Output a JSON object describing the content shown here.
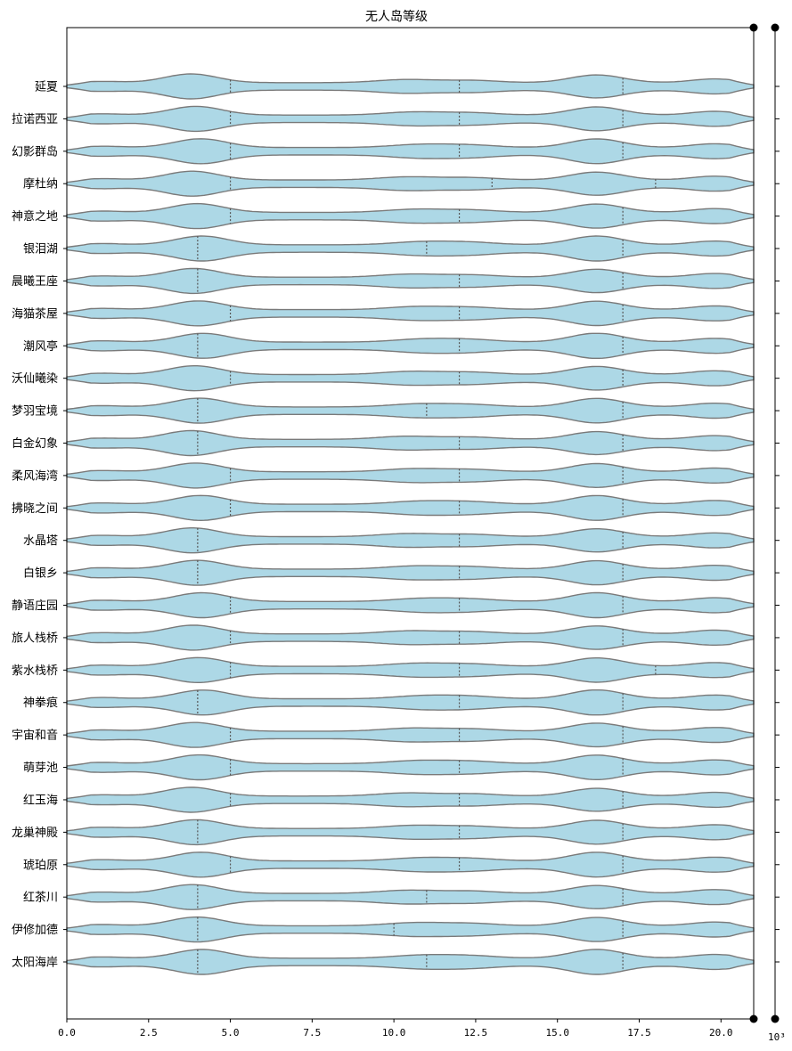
{
  "chart_data": {
    "type": "violin",
    "title": "无人岛等级",
    "xlabel": "",
    "ylabel": "",
    "xlim": [
      0,
      21
    ],
    "x_ticks": [
      0,
      2.5,
      5,
      7.5,
      10,
      12.5,
      15,
      17.5,
      20
    ],
    "x_tick_labels": [
      "0.0",
      "2.5",
      "5.0",
      "7.5",
      "10.0",
      "12.5",
      "15.0",
      "17.5",
      "20.0"
    ],
    "secondary_axis_label": "10³",
    "categories": [
      "延夏",
      "拉诺西亚",
      "幻影群岛",
      "摩杜纳",
      "神意之地",
      "银泪湖",
      "晨曦王座",
      "海猫茶屋",
      "潮风亭",
      "沃仙曦染",
      "梦羽宝境",
      "白金幻象",
      "柔风海湾",
      "拂晓之间",
      "水晶塔",
      "白银乡",
      "静语庄园",
      "旅人栈桥",
      "紫水栈桥",
      "神拳痕",
      "宇宙和音",
      "萌芽池",
      "红玉海",
      "龙巢神殿",
      "琥珀原",
      "红茶川",
      "伊修加德",
      "太阳海岸"
    ],
    "quartiles": [
      [
        5,
        12,
        17
      ],
      [
        5,
        12,
        17
      ],
      [
        5,
        12,
        17
      ],
      [
        5,
        13,
        18
      ],
      [
        5,
        12,
        17
      ],
      [
        4,
        11,
        17
      ],
      [
        4,
        12,
        17
      ],
      [
        5,
        12,
        17
      ],
      [
        4,
        12,
        17
      ],
      [
        5,
        12,
        17
      ],
      [
        4,
        11,
        17
      ],
      [
        4,
        12,
        17
      ],
      [
        5,
        12,
        17
      ],
      [
        5,
        12,
        17
      ],
      [
        4,
        12,
        17
      ],
      [
        4,
        12,
        17
      ],
      [
        5,
        12,
        17
      ],
      [
        5,
        12,
        17
      ],
      [
        5,
        12,
        18
      ],
      [
        4,
        12,
        17
      ],
      [
        5,
        12,
        17
      ],
      [
        5,
        12,
        17
      ],
      [
        5,
        12,
        17
      ],
      [
        4,
        12,
        17
      ],
      [
        5,
        12,
        17
      ],
      [
        4,
        11,
        17
      ],
      [
        4,
        10,
        17
      ],
      [
        4,
        11,
        17
      ]
    ],
    "fill_color": "#add8e6",
    "edge_color": "#7a7a7a",
    "grid": false,
    "legend": "none"
  }
}
